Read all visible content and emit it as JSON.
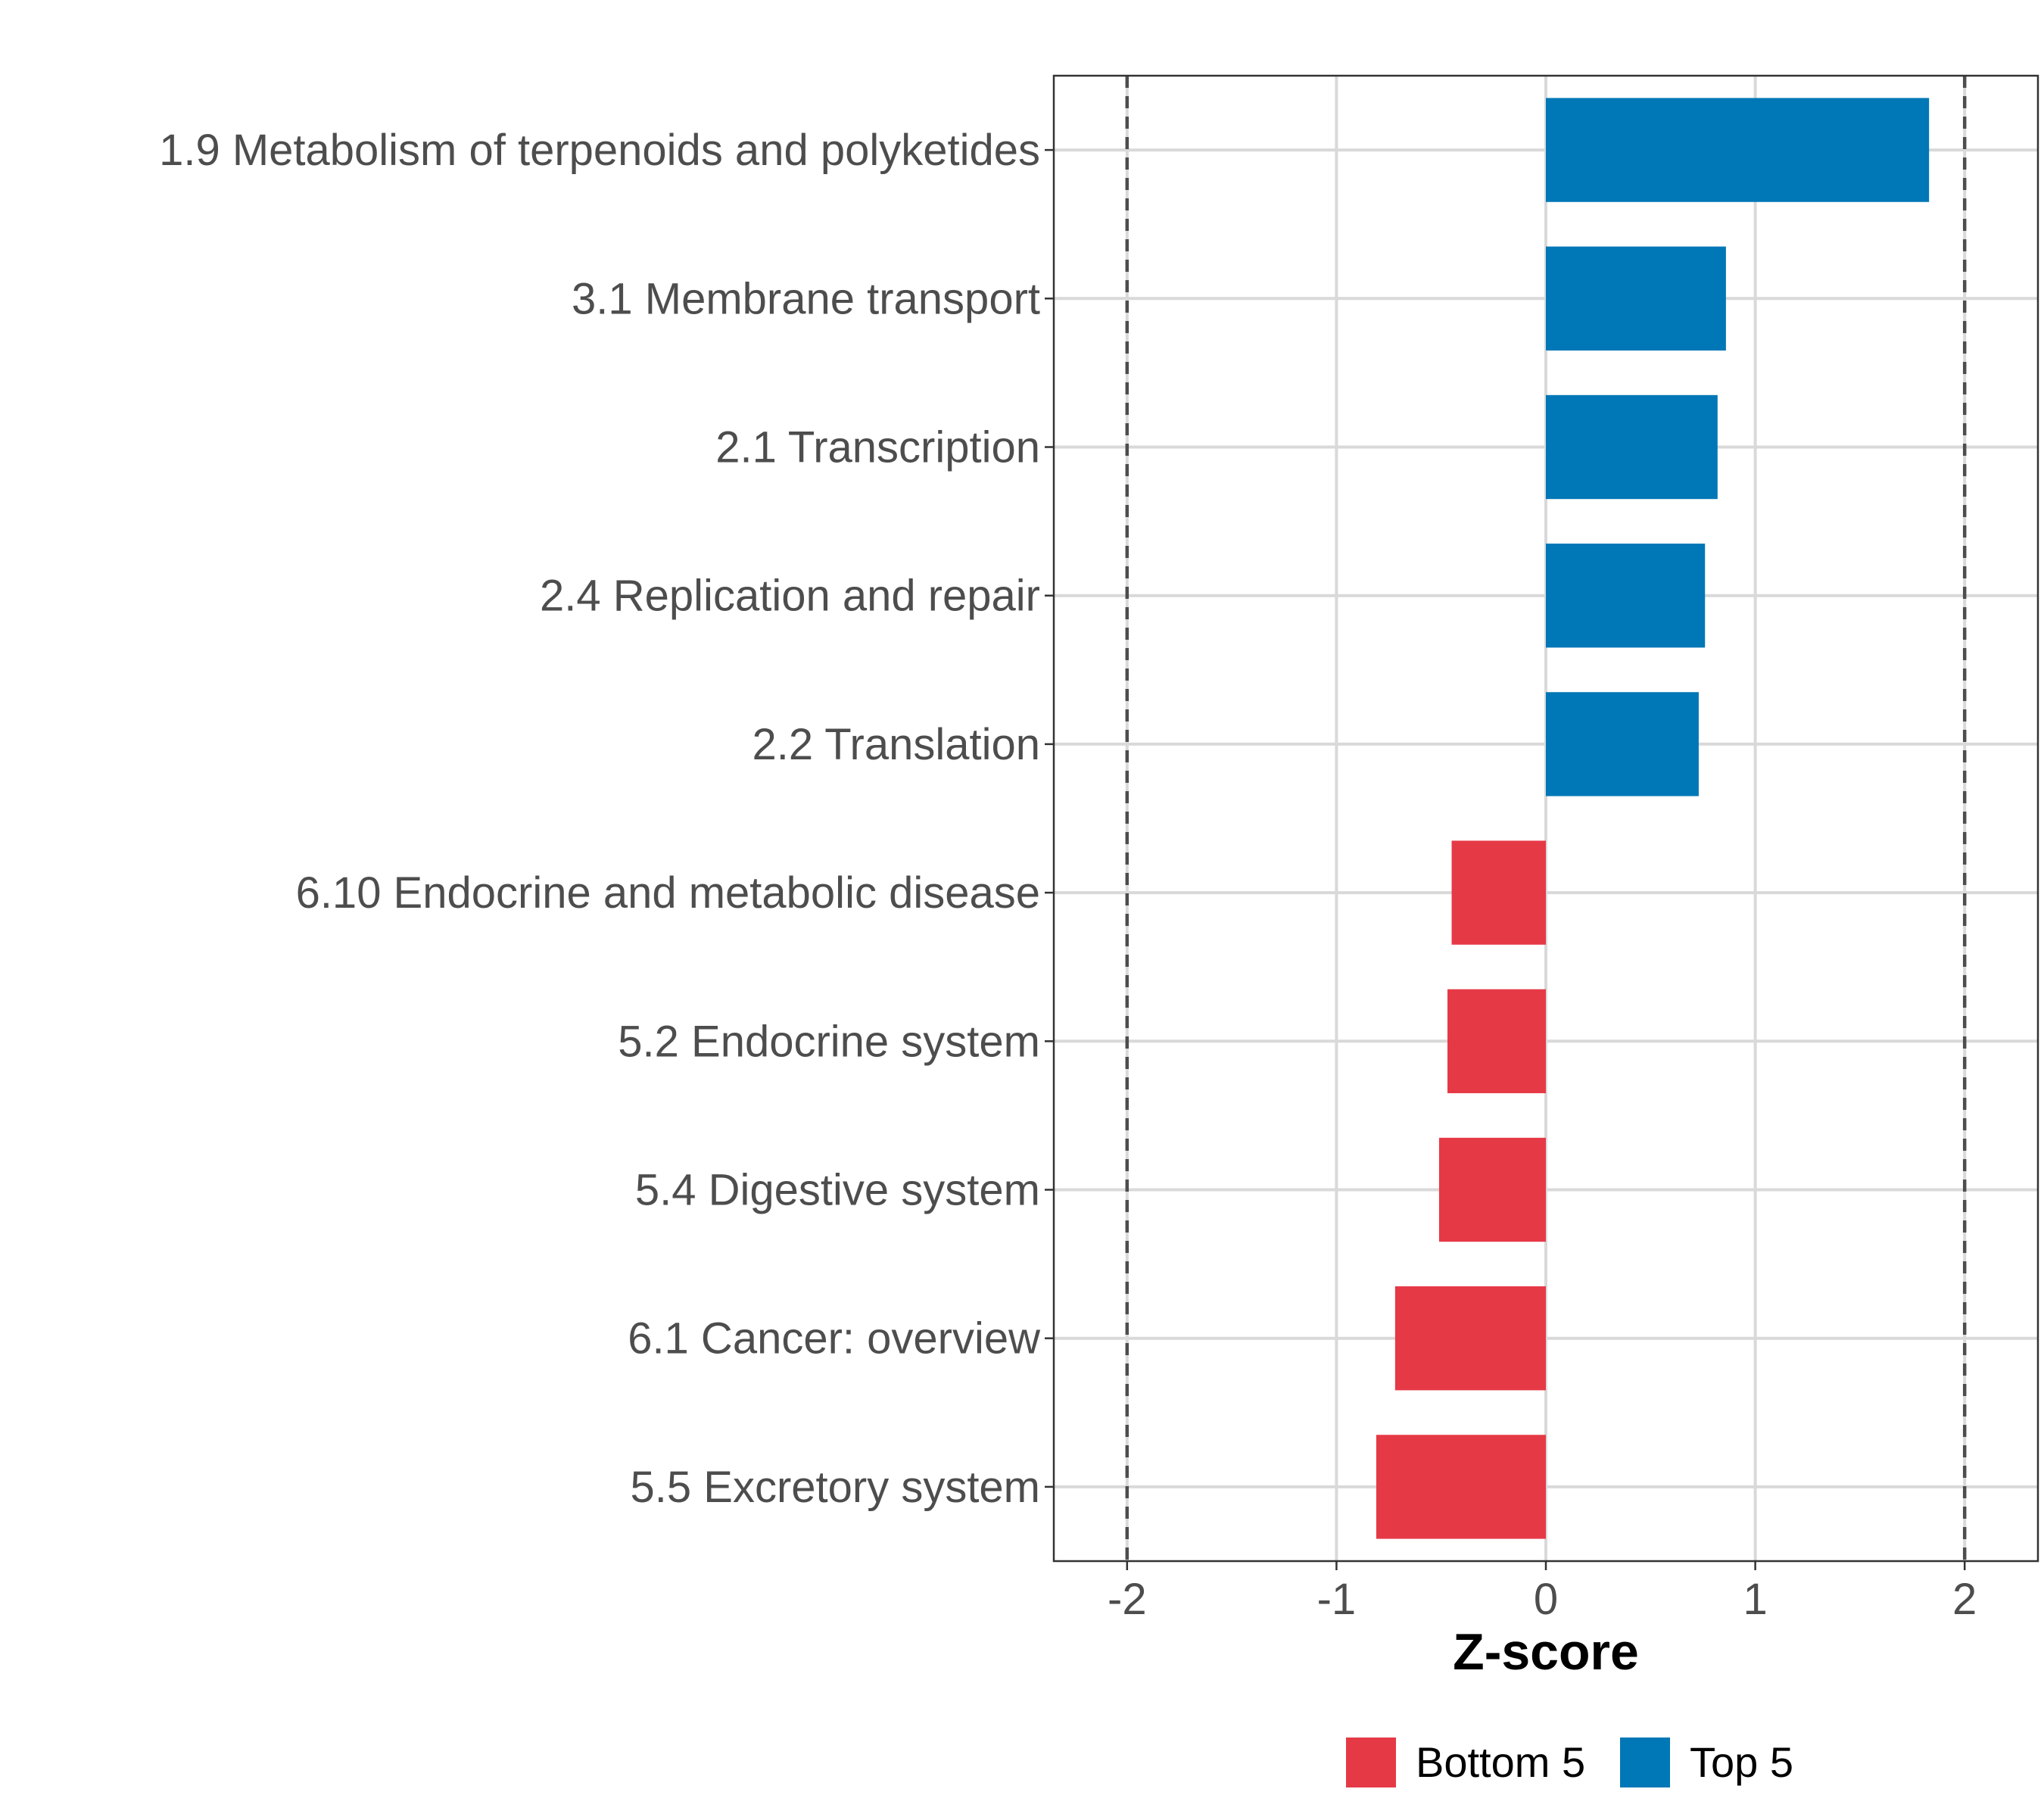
{
  "chart_data": {
    "type": "bar",
    "orientation": "horizontal",
    "title": "",
    "xlabel": "Z-score",
    "ylabel": "",
    "xlim": [
      -2.35,
      2.35
    ],
    "xticks": [
      -2,
      -1,
      0,
      1,
      2
    ],
    "xtick_labels": [
      "-2",
      "-1",
      "0",
      "1",
      "2"
    ],
    "reference_lines": [
      -2,
      2
    ],
    "grid": true,
    "legend_position": "bottom",
    "categories": [
      "1.9 Metabolism of terpenoids and polyketides",
      "3.1 Membrane transport",
      "2.1 Transcription",
      "2.4 Replication and repair",
      "2.2 Translation",
      "6.10 Endocrine and metabolic disease",
      "5.2 Endocrine system",
      "5.4 Digestive system",
      "6.1 Cancer: overview",
      "5.5 Excretory system"
    ],
    "values": [
      1.83,
      0.86,
      0.82,
      0.76,
      0.73,
      -0.45,
      -0.47,
      -0.51,
      -0.72,
      -0.81
    ],
    "groups": [
      "Top 5",
      "Top 5",
      "Top 5",
      "Top 5",
      "Top 5",
      "Bottom 5",
      "Bottom 5",
      "Bottom 5",
      "Bottom 5",
      "Bottom 5"
    ],
    "legend": [
      {
        "name": "Bottom 5",
        "color": "#e63946"
      },
      {
        "name": "Top 5",
        "color": "#0077b6"
      }
    ]
  }
}
